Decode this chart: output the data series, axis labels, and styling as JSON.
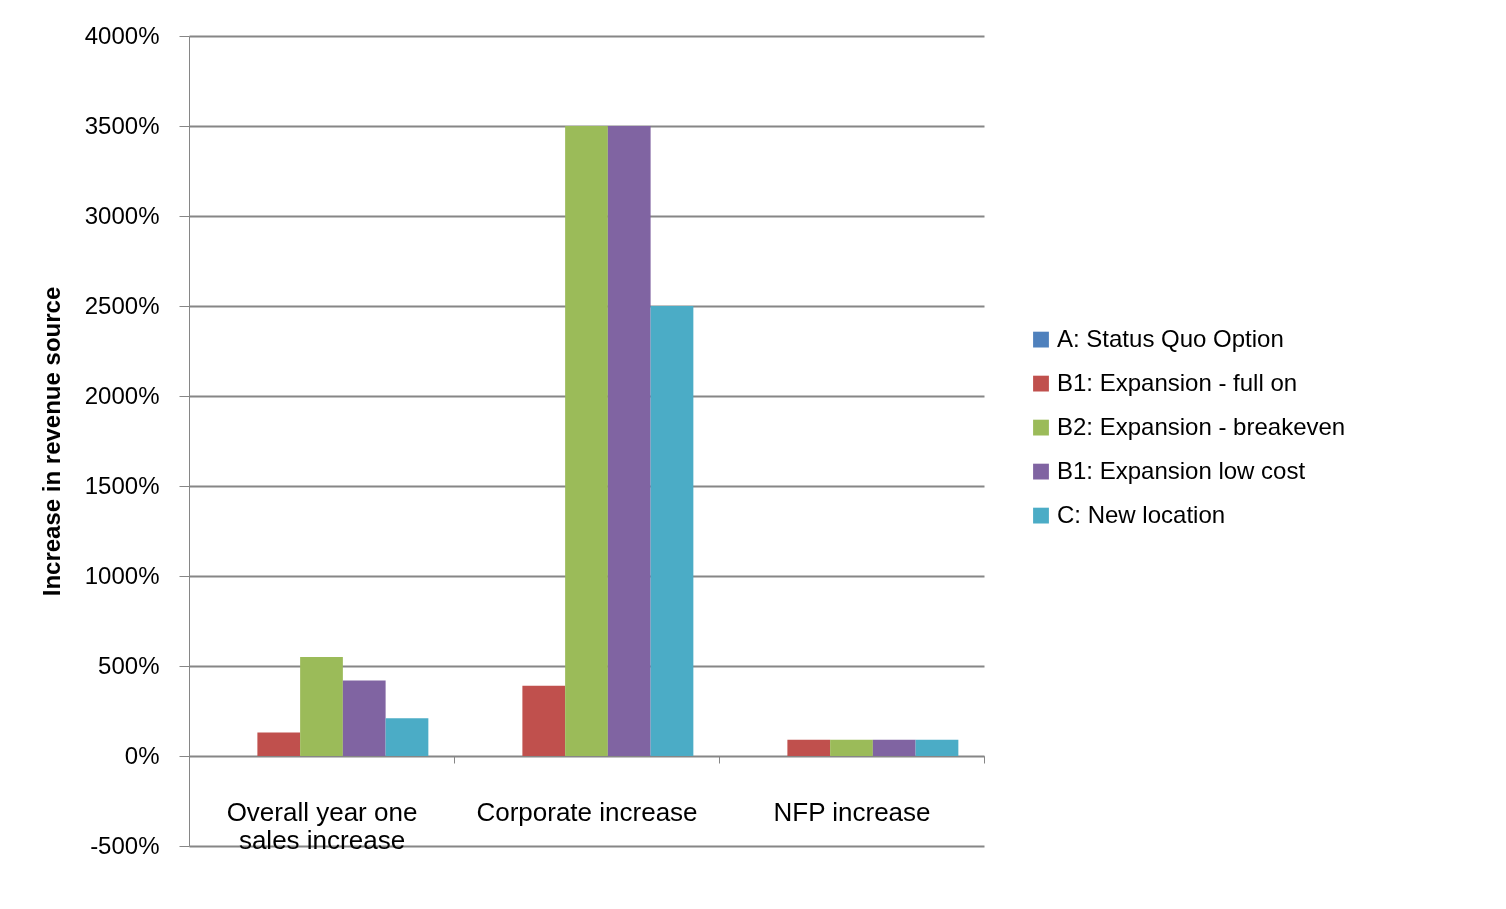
{
  "chart_data": {
    "type": "bar",
    "ylabel": "Increase in revenue source",
    "categories": [
      "Overall year one sales increase",
      "Corporate increase",
      "NFP increase"
    ],
    "series": [
      {
        "name": "A: Status Quo Option",
        "color": "#4f81bd",
        "values": [
          0,
          0,
          0
        ]
      },
      {
        "name": "B1: Expansion - full on",
        "color": "#c0504d",
        "values": [
          130,
          390,
          90
        ]
      },
      {
        "name": "B2: Expansion - breakeven",
        "color": "#9bbb59",
        "values": [
          550,
          3500,
          90
        ]
      },
      {
        "name": "B1: Expansion low cost",
        "color": "#8064a2",
        "values": [
          420,
          3500,
          90
        ]
      },
      {
        "name": "C: New location",
        "color": "#4bacc6",
        "values": [
          210,
          2500,
          90
        ]
      }
    ],
    "ylim": [
      -500,
      4000
    ],
    "yticks": [
      {
        "value": -500,
        "label": "-500%"
      },
      {
        "value": 0,
        "label": "0%"
      },
      {
        "value": 500,
        "label": "500%"
      },
      {
        "value": 1000,
        "label": "1000%"
      },
      {
        "value": 1500,
        "label": "1500%"
      },
      {
        "value": 2000,
        "label": "2000%"
      },
      {
        "value": 2500,
        "label": "2500%"
      },
      {
        "value": 3000,
        "label": "3000%"
      },
      {
        "value": 3500,
        "label": "3500%"
      },
      {
        "value": 4000,
        "label": "4000%"
      }
    ],
    "grid": "y",
    "legend": "right"
  }
}
